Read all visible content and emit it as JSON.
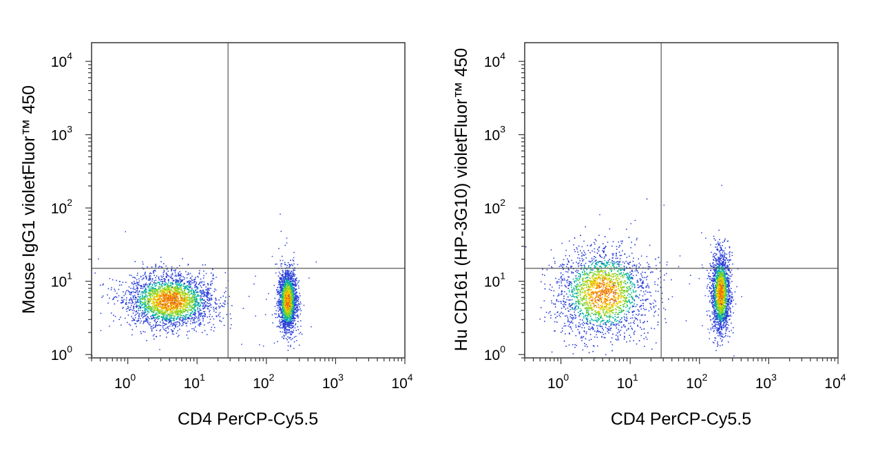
{
  "chart_data": [
    {
      "type": "scatter",
      "subtype": "flow-cytometry-density-dot-plot",
      "xlabel": "CD4 PerCP-Cy5.5",
      "ylabel": "Mouse IgG1 violetFluor™ 450",
      "x_scale": "log",
      "y_scale": "log",
      "xlim": [
        0.3,
        10000
      ],
      "ylim": [
        0.9,
        18000
      ],
      "x_ticks": [
        {
          "base": "10",
          "exp": "0"
        },
        {
          "base": "10",
          "exp": "1"
        },
        {
          "base": "10",
          "exp": "2"
        },
        {
          "base": "10",
          "exp": "3"
        },
        {
          "base": "10",
          "exp": "4"
        }
      ],
      "y_ticks": [
        {
          "base": "10",
          "exp": "0"
        },
        {
          "base": "10",
          "exp": "1"
        },
        {
          "base": "10",
          "exp": "2"
        },
        {
          "base": "10",
          "exp": "3"
        },
        {
          "base": "10",
          "exp": "4"
        }
      ],
      "quadrant_gate": {
        "x": 28,
        "y": 15
      },
      "populations": [
        {
          "label": "CD4-negative",
          "center": [
            4,
            5.5
          ],
          "spread_log10": [
            0.32,
            0.18
          ],
          "count": 2600
        },
        {
          "label": "CD4-positive",
          "center": [
            200,
            5.5
          ],
          "spread_log10": [
            0.065,
            0.2
          ],
          "count": 2000
        }
      ],
      "density_colors": [
        "#2a3fd8",
        "#00b4a0",
        "#7ed321",
        "#f5d000",
        "#f07000"
      ],
      "grid": false
    },
    {
      "type": "scatter",
      "subtype": "flow-cytometry-density-dot-plot",
      "xlabel": "CD4 PerCP-Cy5.5",
      "ylabel": "Hu CD161 (HP-3G10) violetFluor™ 450",
      "x_scale": "log",
      "y_scale": "log",
      "xlim": [
        0.3,
        10000
      ],
      "ylim": [
        0.9,
        18000
      ],
      "x_ticks": [
        {
          "base": "10",
          "exp": "0"
        },
        {
          "base": "10",
          "exp": "1"
        },
        {
          "base": "10",
          "exp": "2"
        },
        {
          "base": "10",
          "exp": "3"
        },
        {
          "base": "10",
          "exp": "4"
        }
      ],
      "y_ticks": [
        {
          "base": "10",
          "exp": "0"
        },
        {
          "base": "10",
          "exp": "1"
        },
        {
          "base": "10",
          "exp": "2"
        },
        {
          "base": "10",
          "exp": "3"
        },
        {
          "base": "10",
          "exp": "4"
        }
      ],
      "quadrant_gate": {
        "x": 28,
        "y": 15
      },
      "populations": [
        {
          "label": "CD4-negative",
          "center": [
            4,
            7
          ],
          "spread_log10": [
            0.33,
            0.3
          ],
          "count": 2600
        },
        {
          "label": "CD4-positive",
          "center": [
            200,
            7
          ],
          "spread_log10": [
            0.065,
            0.26
          ],
          "count": 2000
        }
      ],
      "density_colors": [
        "#2a3fd8",
        "#00b4a0",
        "#7ed321",
        "#f5d000",
        "#f07000"
      ],
      "grid": false
    }
  ]
}
